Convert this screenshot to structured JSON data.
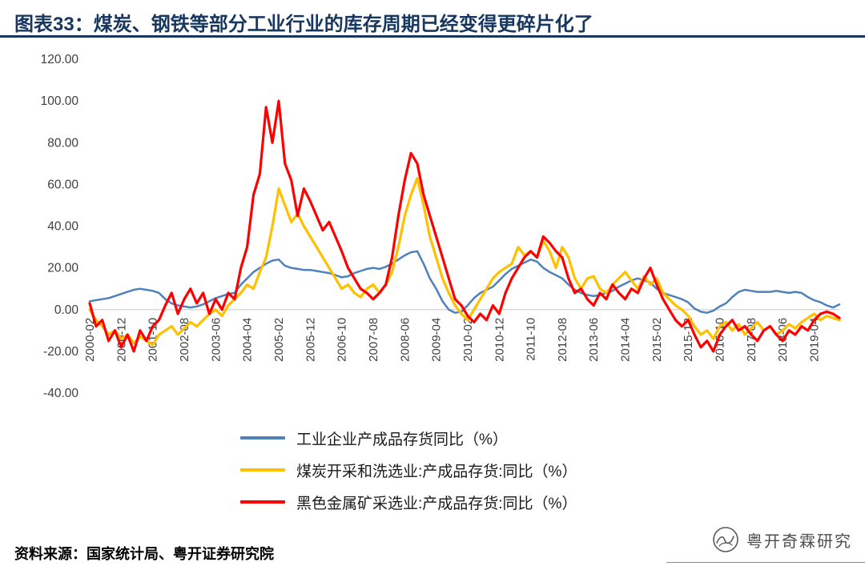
{
  "header": {
    "title": "图表33：煤炭、钢铁等部分工业行业的库存周期已经变得更碎片化了",
    "accent_color": "#17375E"
  },
  "chart_data": {
    "type": "line",
    "title": "煤炭、钢铁等部分工业行业的库存周期已经变得更碎片化了",
    "ylim": [
      -40,
      120
    ],
    "y_tick_step": 20,
    "y_tick_decimals": 2,
    "grid": "off",
    "zero_line_color": "#D9D9D9",
    "legend_position": "bottom",
    "x_tick_every": 5,
    "x_tick_labels": [
      "2000-02",
      "2000-12",
      "2001-10",
      "2002-08",
      "2003-06",
      "2004-04",
      "2005-02",
      "2005-12",
      "2006-10",
      "2007-08",
      "2008-06",
      "2009-04",
      "2010-02",
      "2010-12",
      "2011-10",
      "2012-08",
      "2013-06",
      "2014-04",
      "2015-02",
      "2015-12",
      "2016-10",
      "2017-08",
      "2018-06",
      "2019-04"
    ],
    "series": [
      {
        "name": "工业企业产成品存货同比（%）",
        "color": "#4F81BD",
        "stroke_width": 2.5,
        "values": [
          4,
          4.5,
          5,
          5.5,
          6.5,
          7.5,
          8.5,
          9.5,
          10,
          9.5,
          9,
          8,
          5,
          3,
          2,
          1.5,
          1,
          1.5,
          2.5,
          4,
          5.5,
          6.5,
          7.5,
          8,
          12,
          15,
          18,
          20,
          22,
          23.5,
          24,
          21,
          20,
          19.5,
          19,
          19,
          18.5,
          18,
          17.5,
          16.5,
          15.5,
          16,
          17.5,
          18.5,
          19.5,
          20,
          19.5,
          20.5,
          22,
          24,
          26,
          27.5,
          28,
          22,
          15,
          10,
          4,
          0,
          -1.5,
          -1,
          2,
          5.5,
          8,
          9.5,
          11,
          14,
          17,
          19.5,
          21,
          22.5,
          24,
          23,
          20,
          18,
          16.5,
          15,
          12,
          9.5,
          8,
          7,
          6.5,
          7,
          8,
          9,
          11,
          12.5,
          14,
          15,
          14,
          13,
          10,
          8,
          7,
          6,
          5,
          3.5,
          0.5,
          -1,
          -1.5,
          -0.5,
          1.5,
          3,
          6,
          8.5,
          9.5,
          9,
          8.5,
          8.5,
          8.5,
          9,
          8.5,
          8,
          8.5,
          8,
          6,
          4.5,
          3.5,
          2,
          1,
          2.5
        ]
      },
      {
        "name": "煤炭开采和洗选业:产成品存货:同比（%）",
        "color": "#FFC000",
        "stroke_width": 3.2,
        "values": [
          0,
          -5,
          -8,
          -12,
          -10,
          -14,
          -12,
          -16,
          -13,
          -15,
          -17,
          -12,
          -10,
          -8,
          -12,
          -9,
          -6,
          -8,
          -5,
          -2,
          0,
          -3,
          2,
          5,
          8,
          12,
          10,
          18,
          25,
          40,
          58,
          50,
          42,
          46,
          40,
          35,
          30,
          25,
          20,
          15,
          10,
          12,
          8,
          6,
          10,
          12,
          8,
          12,
          18,
          30,
          45,
          55,
          63,
          50,
          35,
          25,
          15,
          8,
          2,
          -2,
          -5,
          0,
          5,
          10,
          15,
          18,
          20,
          22,
          30,
          26,
          28,
          25,
          33,
          28,
          20,
          30,
          25,
          15,
          10,
          15,
          16,
          10,
          8,
          12,
          15,
          18,
          14,
          10,
          16,
          12,
          15,
          8,
          5,
          2,
          0,
          -3,
          -8,
          -12,
          -10,
          -14,
          -8,
          -6,
          -10,
          -7,
          -12,
          -9,
          -6,
          -10,
          -8,
          -12,
          -10,
          -7,
          -9,
          -6,
          -4,
          -2,
          -5,
          -3,
          -4,
          -5
        ]
      },
      {
        "name": "黑色金属矿采选业:产成品存货:同比（%）",
        "color": "#FF0000",
        "stroke_width": 3.2,
        "values": [
          3,
          -8,
          -5,
          -15,
          -10,
          -18,
          -12,
          -20,
          -10,
          -15,
          -8,
          -5,
          2,
          8,
          -2,
          5,
          10,
          3,
          8,
          -2,
          5,
          0,
          8,
          5,
          20,
          30,
          55,
          65,
          97,
          80,
          100,
          70,
          62,
          45,
          58,
          52,
          45,
          38,
          42,
          35,
          28,
          20,
          15,
          10,
          8,
          5,
          8,
          12,
          25,
          45,
          62,
          75,
          70,
          55,
          45,
          35,
          25,
          15,
          5,
          2,
          -3,
          -6,
          -2,
          -5,
          2,
          -2,
          8,
          15,
          20,
          25,
          28,
          25,
          35,
          32,
          28,
          25,
          15,
          8,
          10,
          5,
          2,
          8,
          5,
          12,
          8,
          5,
          10,
          8,
          15,
          20,
          12,
          5,
          0,
          -5,
          -8,
          -5,
          -12,
          -18,
          -15,
          -20,
          -12,
          -8,
          -5,
          -10,
          -8,
          -12,
          -15,
          -10,
          -8,
          -12,
          -15,
          -10,
          -12,
          -8,
          -10,
          -5,
          -2,
          -1,
          -2,
          -4
        ]
      }
    ]
  },
  "footer": {
    "source": "资料来源：国家统计局、粤开证券研究院",
    "watermark": "粤开奇霖研究"
  }
}
